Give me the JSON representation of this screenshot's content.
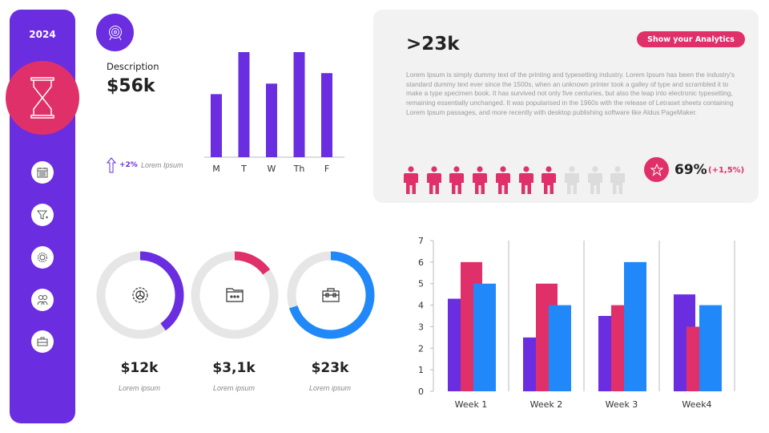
{
  "colors": {
    "purple": "#6a2de0",
    "pink": "#e0306a",
    "blue": "#2088f8",
    "grey": "#e6e6e6"
  },
  "sidebar": {
    "year": "2024",
    "main_icon": "hourglass-icon",
    "items": [
      {
        "icon": "calendar-icon"
      },
      {
        "icon": "filter-icon"
      },
      {
        "icon": "gear-icon"
      },
      {
        "icon": "users-icon"
      },
      {
        "icon": "briefcase-icon"
      }
    ]
  },
  "summary": {
    "icon": "target-icon",
    "label": "Description",
    "value": "$56k",
    "change": "+2%",
    "change_label": "Lorem Ipsum"
  },
  "chart_data": [
    {
      "type": "bar",
      "categories": [
        "M",
        "T",
        "W",
        "Th",
        "F"
      ],
      "values": [
        3,
        5,
        3.5,
        5,
        4
      ],
      "color": "#6a2de0"
    },
    {
      "type": "bar",
      "categories": [
        "Week 1",
        "Week 2",
        "Week 3",
        "Week4"
      ],
      "ylim": [
        0,
        7
      ],
      "yticks": [
        "0",
        "1",
        "2",
        "3",
        "4",
        "5",
        "6",
        "7"
      ],
      "series": [
        {
          "values": [
            4.3,
            2.5,
            3.5,
            4.5
          ],
          "color": "#6a2de0"
        },
        {
          "values": [
            6,
            5,
            4,
            3
          ],
          "color": "#e0306a"
        },
        {
          "values": [
            5,
            4,
            6,
            4
          ],
          "color": "#2088f8"
        }
      ]
    }
  ],
  "panel": {
    "headline": ">23k",
    "button": "Show your Analytics",
    "body": "Lorem Ipsum is simply dummy text of the printing and typesetting industry. Lorem Ipsum has been the industry's standard dummy text ever since the 1500s, when an unknown printer took a galley of type and scrambled it to make a type specimen book. It has survived  not only five centuries, but also  the leap into electronic typesetting, remaining essentially  unchanged. It was popularised in the 1960s with the release  of Letraset sheets containing Lorem Ipsum passages,  and more recently with desktop publishing software like Aldus PageMaker.",
    "people_total": 10,
    "people_filled": 7,
    "percent": "69%",
    "percent_change": "(+1,5%)",
    "star_icon": "star-icon"
  },
  "rings": [
    {
      "value": "$12k",
      "label": "Lorem ipsum",
      "fraction": 0.4,
      "color": "#6a2de0",
      "icon": "gear-icon"
    },
    {
      "value": "$3,1k",
      "label": "Lorem ipsum",
      "fraction": 0.15,
      "color": "#e0306a",
      "icon": "folder-icon"
    },
    {
      "value": "$23k",
      "label": "Lorem ipsum",
      "fraction": 0.7,
      "color": "#2088f8",
      "icon": "briefcase-icon"
    }
  ]
}
